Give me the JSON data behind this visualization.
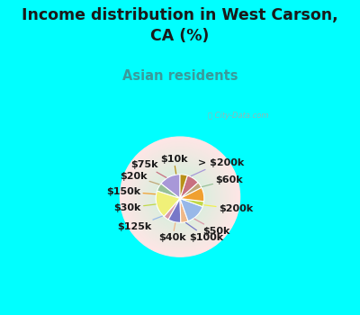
{
  "title": "Income distribution in West Carson,\nCA (%)",
  "subtitle": "Asian residents",
  "title_color": "#1a1a1a",
  "subtitle_color": "#3a9a9a",
  "background_cyan": "#00ffff",
  "labels": [
    "> $200k",
    "$60k",
    "$200k",
    "$50k",
    "$100k",
    "$40k",
    "$125k",
    "$30k",
    "$150k",
    "$20k",
    "$75k",
    "$10k"
  ],
  "values": [
    14.5,
    5.5,
    18.5,
    3.5,
    8.5,
    5.0,
    14.0,
    3.5,
    9.5,
    4.0,
    8.5,
    5.0
  ],
  "colors": [
    "#a898d8",
    "#98c098",
    "#f0f078",
    "#d898a8",
    "#7878c8",
    "#f0b888",
    "#98b8e8",
    "#c0d848",
    "#f0a030",
    "#c0a878",
    "#c87080",
    "#b89018"
  ],
  "line_colors": [
    "#a898d8",
    "#98c098",
    "#f0f050",
    "#d898a8",
    "#7878c8",
    "#f0b888",
    "#98b8e8",
    "#c0d848",
    "#f0a030",
    "#c0a878",
    "#c87080",
    "#b89018"
  ],
  "startangle": 90,
  "label_fontsize": 8,
  "label_color": "#1a1a1a"
}
